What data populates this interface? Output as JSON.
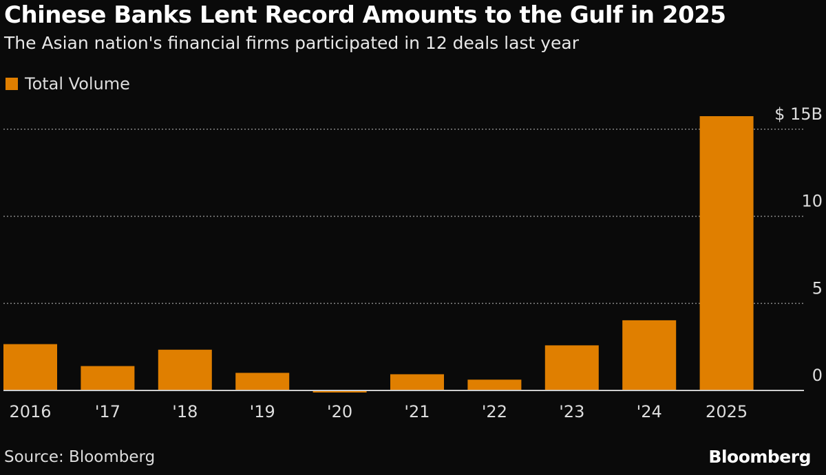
{
  "title": "Chinese Banks Lent Record Amounts to the Gulf in 2025",
  "subtitle": "The Asian nation's financial firms participated in 12 deals last year",
  "source": "Source: Bloomberg",
  "logo": "Bloomberg",
  "colors": {
    "bar": "#e07f00",
    "background": "#0a0a0a",
    "grid": "#888888"
  },
  "chart_data": {
    "type": "bar",
    "title": "Chinese Banks Lent Record Amounts to the Gulf in 2025",
    "legend": {
      "placement": "top-left",
      "entries": [
        "Total Volume"
      ]
    },
    "categories": [
      "2016",
      "'17",
      "'18",
      "'19",
      "'20",
      "'21",
      "'22",
      "'23",
      "'24",
      "2025"
    ],
    "series": [
      {
        "name": "Total Volume",
        "values": [
          2.66,
          1.4,
          2.34,
          1.01,
          0.05,
          0.93,
          0.62,
          2.59,
          4.03,
          15.75
        ]
      }
    ],
    "y_axis": {
      "position": "right",
      "ylim": [
        0,
        15.8
      ],
      "ticks": [
        0,
        5,
        10,
        15
      ],
      "tick_labels": [
        "0",
        "5",
        "10",
        "$ 15B"
      ]
    },
    "grid": true
  }
}
